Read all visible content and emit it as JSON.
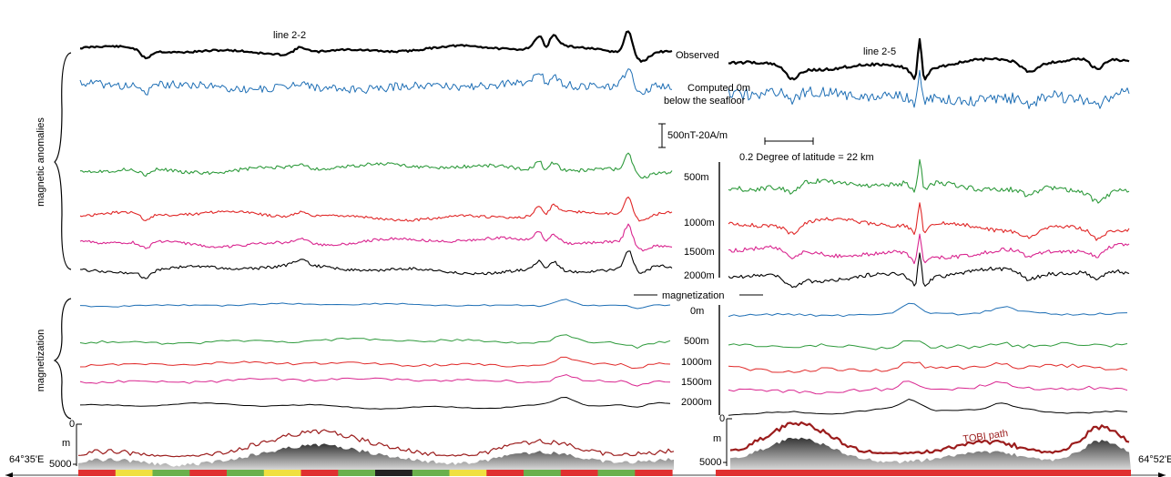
{
  "chart_data": {
    "type": "line",
    "title": "",
    "left_panel_title": "line 2-2",
    "right_panel_title": "line 2-5",
    "side_labels": {
      "anomalies": "magnetic anomalies",
      "magnetization": "magnetization"
    },
    "center_labels": {
      "observed": "Observed",
      "computed_line1": "Computed 0m",
      "computed_line2": "below the seafloor",
      "amp_scale": "500nT-20A/m",
      "distance_scale": "0.2 Degree of latitude = 22 km",
      "magnetization_divider": "magnetization"
    },
    "depth_labels": [
      "500m",
      "1000m",
      "1500m",
      "2000m"
    ],
    "magnetization_depth_labels": [
      "0m",
      "500m",
      "1000m",
      "1500m",
      "2000m"
    ],
    "bathymetry": {
      "axis_unit": "m",
      "tick_top": "0",
      "tick_bottom": "5000",
      "tobi_label": "TOBI path",
      "left_longitude": "64°35'E",
      "right_longitude": "64°52'E"
    },
    "series": [
      {
        "name": "Observed",
        "color": "#000000",
        "group": "anomalies"
      },
      {
        "name": "Computed 0m below the seafloor",
        "color": "#1f6fb5",
        "group": "anomalies"
      },
      {
        "name": "500m",
        "color": "#2e9a3c",
        "group": "anomalies"
      },
      {
        "name": "1000m",
        "color": "#e02828",
        "group": "anomalies"
      },
      {
        "name": "1500m",
        "color": "#d9258f",
        "group": "anomalies"
      },
      {
        "name": "2000m",
        "color": "#000000",
        "group": "anomalies"
      },
      {
        "name": "0m",
        "color": "#1f6fb5",
        "group": "magnetization"
      },
      {
        "name": "500m",
        "color": "#2e9a3c",
        "group": "magnetization"
      },
      {
        "name": "1000m",
        "color": "#e02828",
        "group": "magnetization"
      },
      {
        "name": "1500m",
        "color": "#d9258f",
        "group": "magnetization"
      },
      {
        "name": "2000m",
        "color": "#000000",
        "group": "magnetization"
      }
    ],
    "color_bar_left": [
      "#e03030",
      "#f0e040",
      "#6ab04c",
      "#e03030",
      "#6ab04c",
      "#f0e040",
      "#e03030",
      "#6ab04c",
      "#222222",
      "#6ab04c",
      "#f0e040",
      "#e03030",
      "#6ab04c",
      "#e03030",
      "#6ab04c",
      "#e03030"
    ],
    "color_bar_right": [
      "#e03030"
    ]
  }
}
